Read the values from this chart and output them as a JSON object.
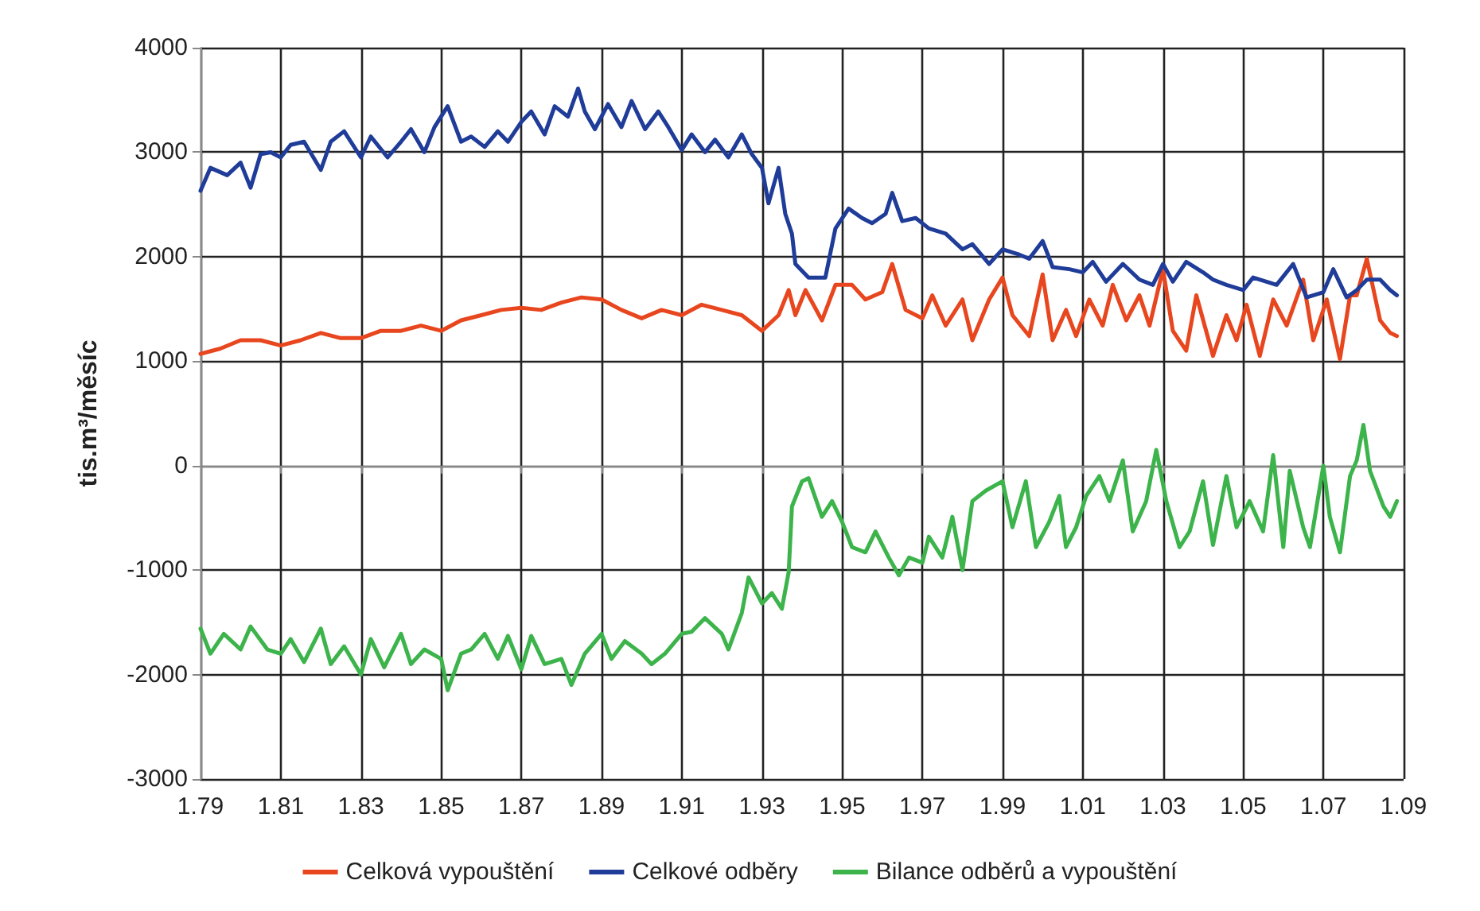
{
  "chart_data": {
    "type": "line",
    "ylabel": "tis.m³/měsíc",
    "xlim": [
      "1979-01",
      "2009-01"
    ],
    "ylim": [
      -3000,
      4000
    ],
    "yticks": [
      -3000,
      -2000,
      -1000,
      0,
      1000,
      2000,
      3000,
      4000
    ],
    "xticks": [
      {
        "value": "1979-01",
        "label": "1.79"
      },
      {
        "value": "1981-01",
        "label": "1.81"
      },
      {
        "value": "1983-01",
        "label": "1.83"
      },
      {
        "value": "1985-01",
        "label": "1.85"
      },
      {
        "value": "1987-01",
        "label": "1.87"
      },
      {
        "value": "1989-01",
        "label": "1.89"
      },
      {
        "value": "1991-01",
        "label": "1.91"
      },
      {
        "value": "1993-01",
        "label": "1.93"
      },
      {
        "value": "1995-01",
        "label": "1.95"
      },
      {
        "value": "1997-01",
        "label": "1.97"
      },
      {
        "value": "1999-01",
        "label": "1.99"
      },
      {
        "value": "2001-01",
        "label": "1.01"
      },
      {
        "value": "2003-01",
        "label": "1.03"
      },
      {
        "value": "2005-01",
        "label": "1.05"
      },
      {
        "value": "2007-01",
        "label": "1.07"
      },
      {
        "value": "2009-01",
        "label": "1.09"
      }
    ],
    "grid": true,
    "legend": "bottom",
    "line_style": "solid",
    "series": [
      {
        "name": "Celková vypouštění",
        "color": "#e8461e",
        "x": [
          "1979-01",
          "1979-07",
          "1980-01",
          "1980-07",
          "1981-01",
          "1981-07",
          "1982-01",
          "1982-07",
          "1983-01",
          "1983-07",
          "1984-01",
          "1984-07",
          "1985-01",
          "1985-07",
          "1986-01",
          "1986-07",
          "1987-01",
          "1987-07",
          "1988-01",
          "1988-07",
          "1989-01",
          "1989-07",
          "1990-01",
          "1990-07",
          "1991-01",
          "1991-07",
          "1992-01",
          "1992-07",
          "1993-01",
          "1993-06",
          "1993-09",
          "1993-11",
          "1994-02",
          "1994-07",
          "1994-11",
          "1995-04",
          "1995-08",
          "1996-01",
          "1996-04",
          "1996-08",
          "1997-01",
          "1997-04",
          "1997-08",
          "1998-01",
          "1998-04",
          "1998-09",
          "1999-01",
          "1999-04",
          "1999-09",
          "2000-01",
          "2000-04",
          "2000-08",
          "2000-11",
          "2001-03",
          "2001-07",
          "2001-10",
          "2002-02",
          "2002-06",
          "2002-09",
          "2003-01",
          "2003-04",
          "2003-08",
          "2003-11",
          "2004-04",
          "2004-08",
          "2004-11",
          "2005-02",
          "2005-06",
          "2005-10",
          "2006-02",
          "2006-07",
          "2006-10",
          "2007-02",
          "2007-06",
          "2007-09",
          "2007-11",
          "2008-02",
          "2008-06",
          "2008-09",
          "2008-11"
        ],
        "values": [
          1070,
          1120,
          1200,
          1200,
          1150,
          1200,
          1270,
          1220,
          1220,
          1290,
          1290,
          1340,
          1290,
          1390,
          1440,
          1490,
          1510,
          1490,
          1560,
          1610,
          1590,
          1490,
          1410,
          1490,
          1440,
          1540,
          1490,
          1440,
          1290,
          1440,
          1680,
          1440,
          1680,
          1390,
          1730,
          1730,
          1590,
          1660,
          1930,
          1490,
          1410,
          1630,
          1340,
          1590,
          1200,
          1590,
          1800,
          1440,
          1240,
          1830,
          1200,
          1490,
          1240,
          1590,
          1340,
          1730,
          1390,
          1630,
          1340,
          1880,
          1290,
          1100,
          1630,
          1050,
          1440,
          1200,
          1540,
          1050,
          1590,
          1340,
          1780,
          1200,
          1590,
          1020,
          1630,
          1630,
          1980,
          1390,
          1270,
          1240
        ]
      },
      {
        "name": "Celkové odběry",
        "color": "#1f3c99",
        "x": [
          "1979-01",
          "1979-04",
          "1979-09",
          "1980-01",
          "1980-04",
          "1980-07",
          "1980-10",
          "1981-01",
          "1981-04",
          "1981-08",
          "1982-01",
          "1982-04",
          "1982-08",
          "1983-01",
          "1983-04",
          "1983-09",
          "1984-01",
          "1984-04",
          "1984-08",
          "1984-11",
          "1985-03",
          "1985-07",
          "1985-10",
          "1986-02",
          "1986-06",
          "1986-09",
          "1987-01",
          "1987-04",
          "1987-08",
          "1987-11",
          "1988-03",
          "1988-06",
          "1988-08",
          "1988-11",
          "1989-03",
          "1989-07",
          "1989-10",
          "1990-02",
          "1990-06",
          "1990-09",
          "1991-01",
          "1991-04",
          "1991-08",
          "1991-11",
          "1992-03",
          "1992-07",
          "1992-10",
          "1993-01",
          "1993-03",
          "1993-06",
          "1993-08",
          "1993-10",
          "1993-11",
          "1994-03",
          "1994-08",
          "1994-11",
          "1995-03",
          "1995-07",
          "1995-10",
          "1996-02",
          "1996-04",
          "1996-07",
          "1996-11",
          "1997-03",
          "1997-08",
          "1998-01",
          "1998-04",
          "1998-09",
          "1999-01",
          "1999-06",
          "1999-09",
          "2000-01",
          "2000-04",
          "2000-09",
          "2001-01",
          "2001-04",
          "2001-08",
          "2002-01",
          "2002-06",
          "2002-10",
          "2003-01",
          "2003-04",
          "2003-08",
          "2004-01",
          "2004-04",
          "2004-08",
          "2005-01",
          "2005-04",
          "2005-08",
          "2005-11",
          "2006-04",
          "2006-08",
          "2007-01",
          "2007-04",
          "2007-08",
          "2007-11",
          "2008-02",
          "2008-06",
          "2008-09",
          "2008-11"
        ],
        "values": [
          2630,
          2850,
          2780,
          2900,
          2660,
          2980,
          3000,
          2950,
          3070,
          3100,
          2830,
          3100,
          3200,
          2950,
          3150,
          2950,
          3100,
          3220,
          3000,
          3240,
          3440,
          3100,
          3150,
          3050,
          3200,
          3100,
          3290,
          3390,
          3170,
          3440,
          3340,
          3610,
          3390,
          3220,
          3460,
          3240,
          3490,
          3220,
          3390,
          3240,
          3020,
          3170,
          3000,
          3120,
          2950,
          3170,
          2980,
          2850,
          2510,
          2850,
          2410,
          2220,
          1930,
          1800,
          1800,
          2270,
          2460,
          2370,
          2320,
          2410,
          2610,
          2340,
          2370,
          2270,
          2220,
          2070,
          2120,
          1930,
          2070,
          2020,
          1980,
          2150,
          1900,
          1880,
          1850,
          1950,
          1760,
          1930,
          1780,
          1730,
          1930,
          1760,
          1950,
          1850,
          1780,
          1730,
          1680,
          1800,
          1760,
          1730,
          1930,
          1610,
          1660,
          1880,
          1610,
          1680,
          1780,
          1780,
          1680,
          1630
        ]
      },
      {
        "name": "Bilance odběrů a vypouštění",
        "color": "#3cb44b",
        "x": [
          "1979-01",
          "1979-04",
          "1979-08",
          "1980-01",
          "1980-04",
          "1980-09",
          "1981-01",
          "1981-04",
          "1981-08",
          "1982-01",
          "1982-04",
          "1982-08",
          "1983-01",
          "1983-04",
          "1983-08",
          "1984-01",
          "1984-04",
          "1984-08",
          "1985-01",
          "1985-03",
          "1985-07",
          "1985-10",
          "1986-02",
          "1986-06",
          "1986-09",
          "1987-01",
          "1987-04",
          "1987-08",
          "1988-01",
          "1988-04",
          "1988-08",
          "1989-01",
          "1989-04",
          "1989-08",
          "1990-01",
          "1990-04",
          "1990-08",
          "1991-01",
          "1991-04",
          "1991-08",
          "1992-01",
          "1992-03",
          "1992-07",
          "1992-09",
          "1993-01",
          "1993-04",
          "1993-07",
          "1993-09",
          "1993-10",
          "1994-01",
          "1994-03",
          "1994-07",
          "1994-10",
          "1995-01",
          "1995-04",
          "1995-08",
          "1995-11",
          "1996-03",
          "1996-06",
          "1996-09",
          "1997-01",
          "1997-03",
          "1997-07",
          "1997-10",
          "1998-01",
          "1998-04",
          "1998-08",
          "1999-01",
          "1999-04",
          "1999-08",
          "1999-11",
          "2000-03",
          "2000-06",
          "2000-08",
          "2000-11",
          "2001-02",
          "2001-06",
          "2001-09",
          "2002-01",
          "2002-04",
          "2002-08",
          "2002-11",
          "2003-02",
          "2003-06",
          "2003-09",
          "2004-01",
          "2004-04",
          "2004-08",
          "2004-11",
          "2005-03",
          "2005-07",
          "2005-10",
          "2006-01",
          "2006-03",
          "2006-07",
          "2006-09",
          "2007-01",
          "2007-03",
          "2007-06",
          "2007-09",
          "2007-11",
          "2008-01",
          "2008-03",
          "2008-07",
          "2008-09",
          "2008-11"
        ],
        "values": [
          -1560,
          -1800,
          -1610,
          -1760,
          -1540,
          -1760,
          -1800,
          -1660,
          -1880,
          -1560,
          -1900,
          -1730,
          -2000,
          -1660,
          -1930,
          -1610,
          -1900,
          -1760,
          -1850,
          -2150,
          -1800,
          -1760,
          -1610,
          -1850,
          -1630,
          -1950,
          -1630,
          -1900,
          -1850,
          -2100,
          -1800,
          -1610,
          -1850,
          -1680,
          -1800,
          -1900,
          -1800,
          -1610,
          -1590,
          -1460,
          -1610,
          -1760,
          -1410,
          -1070,
          -1320,
          -1220,
          -1370,
          -1020,
          -390,
          -150,
          -120,
          -490,
          -340,
          -540,
          -780,
          -830,
          -630,
          -880,
          -1050,
          -880,
          -930,
          -680,
          -880,
          -490,
          -1000,
          -340,
          -240,
          -150,
          -590,
          -150,
          -780,
          -540,
          -290,
          -780,
          -590,
          -290,
          -100,
          -340,
          50,
          -630,
          -340,
          150,
          -340,
          -780,
          -630,
          -150,
          -760,
          -100,
          -590,
          -340,
          -630,
          100,
          -780,
          -50,
          -590,
          -780,
          0,
          -490,
          -830,
          -100,
          50,
          390,
          -50,
          -390,
          -490,
          -340
        ]
      }
    ]
  }
}
